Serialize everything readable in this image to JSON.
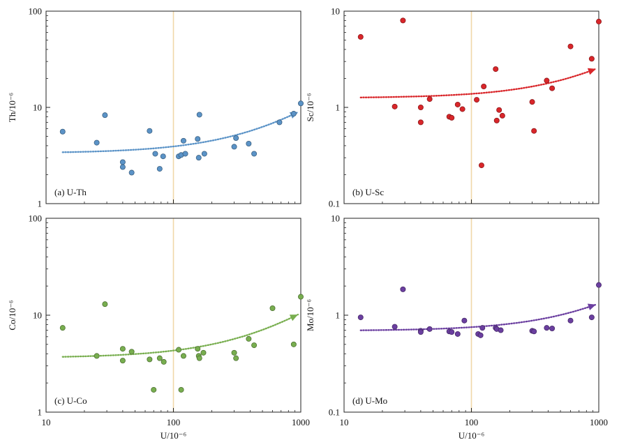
{
  "figure": {
    "xlabel": "U/10⁻⁶"
  },
  "chart_data": [
    {
      "id": "th",
      "type": "scatter",
      "panel_label": "(a) U-Th",
      "ylabel": "Th/10⁻⁶",
      "x_scale": "log",
      "y_scale": "log",
      "xlim": [
        10,
        1000
      ],
      "ylim": [
        1,
        100
      ],
      "x_ticks": [
        "10",
        "100",
        "1000"
      ],
      "y_ticks": [
        "1",
        "10",
        "100"
      ],
      "x_tick_labels_shown": false,
      "vline_x": 100,
      "color": "#5b93c7",
      "x": [
        13.5,
        25,
        29,
        40,
        40,
        47,
        65,
        72,
        78,
        83,
        110,
        115,
        120,
        124,
        155,
        158,
        160,
        175,
        300,
        310,
        390,
        430,
        680,
        880,
        1000
      ],
      "y": [
        5.6,
        4.3,
        8.3,
        2.7,
        2.4,
        2.1,
        5.7,
        3.3,
        2.3,
        3.1,
        3.1,
        3.2,
        4.5,
        3.3,
        4.7,
        3.0,
        8.4,
        3.3,
        3.9,
        4.8,
        4.2,
        3.3,
        7.0,
        8.6,
        11.0
      ],
      "trend": {
        "a": 3.34,
        "b": 0.00587
      }
    },
    {
      "id": "sc",
      "type": "scatter",
      "panel_label": "(b) U-Sc",
      "ylabel": "Sc/10⁻⁶",
      "x_scale": "log",
      "y_scale": "log",
      "xlim": [
        10,
        1000
      ],
      "ylim": [
        0.1,
        10
      ],
      "x_ticks": [
        "10",
        "100",
        "1000"
      ],
      "y_ticks": [
        "0.1",
        "1",
        "10"
      ],
      "x_tick_labels_shown": false,
      "vline_x": 100,
      "color": "#d9262a",
      "x": [
        13.5,
        25,
        29,
        40,
        40,
        47,
        67,
        70,
        78,
        85,
        110,
        120,
        125,
        155,
        158,
        165,
        175,
        300,
        310,
        390,
        430,
        600,
        880,
        1000
      ],
      "y": [
        5.4,
        1.02,
        8.0,
        1.0,
        0.7,
        1.22,
        0.8,
        0.78,
        1.07,
        0.96,
        1.2,
        0.25,
        1.65,
        2.5,
        0.73,
        0.94,
        0.82,
        1.14,
        0.57,
        1.9,
        1.58,
        4.3,
        3.2,
        7.8
      ],
      "trend": {
        "a": 1.25,
        "b": 0.00133
      }
    },
    {
      "id": "co",
      "type": "scatter",
      "panel_label": "(c) U-Co",
      "ylabel": "Co/10⁻⁶",
      "x_scale": "log",
      "y_scale": "log",
      "xlim": [
        10,
        1000
      ],
      "ylim": [
        1,
        100
      ],
      "x_ticks": [
        "10",
        "100",
        "1000"
      ],
      "y_ticks": [
        "1",
        "10",
        "100"
      ],
      "x_tick_labels_shown": true,
      "vline_x": 100,
      "color": "#78ae4f",
      "x": [
        13.5,
        25,
        29,
        40,
        40,
        47,
        65,
        70,
        78,
        84,
        110,
        115,
        120,
        155,
        158,
        160,
        172,
        300,
        310,
        390,
        430,
        600,
        880,
        1000
      ],
      "y": [
        7.4,
        3.8,
        13.0,
        3.4,
        4.5,
        4.2,
        3.5,
        1.7,
        3.6,
        3.3,
        4.4,
        1.7,
        3.8,
        4.5,
        3.8,
        3.6,
        4.1,
        4.1,
        3.6,
        5.7,
        4.9,
        11.8,
        5.0,
        15.5
      ],
      "trend": {
        "a": 3.63,
        "b": 0.00687
      }
    },
    {
      "id": "mo",
      "type": "scatter",
      "panel_label": "(d) U-Mo",
      "ylabel": "Mo/10⁻⁶",
      "x_scale": "log",
      "y_scale": "log",
      "xlim": [
        10,
        1000
      ],
      "ylim": [
        0.1,
        10
      ],
      "x_ticks": [
        "10",
        "100",
        "1000"
      ],
      "y_ticks": [
        "0.1",
        "1",
        "10"
      ],
      "x_tick_labels_shown": true,
      "vline_x": 100,
      "color": "#6b3fa0",
      "x": [
        13.5,
        25,
        29,
        40,
        40,
        47,
        67,
        70,
        78,
        88,
        113,
        118,
        122,
        155,
        158,
        170,
        300,
        310,
        390,
        430,
        600,
        880,
        1000
      ],
      "y": [
        0.95,
        0.76,
        1.85,
        0.69,
        0.67,
        0.72,
        0.68,
        0.67,
        0.64,
        0.88,
        0.64,
        0.62,
        0.74,
        0.74,
        0.72,
        0.7,
        0.69,
        0.68,
        0.74,
        0.73,
        0.88,
        0.95,
        2.05
      ],
      "trend": {
        "a": 0.69,
        "b": 0.00063
      }
    }
  ]
}
